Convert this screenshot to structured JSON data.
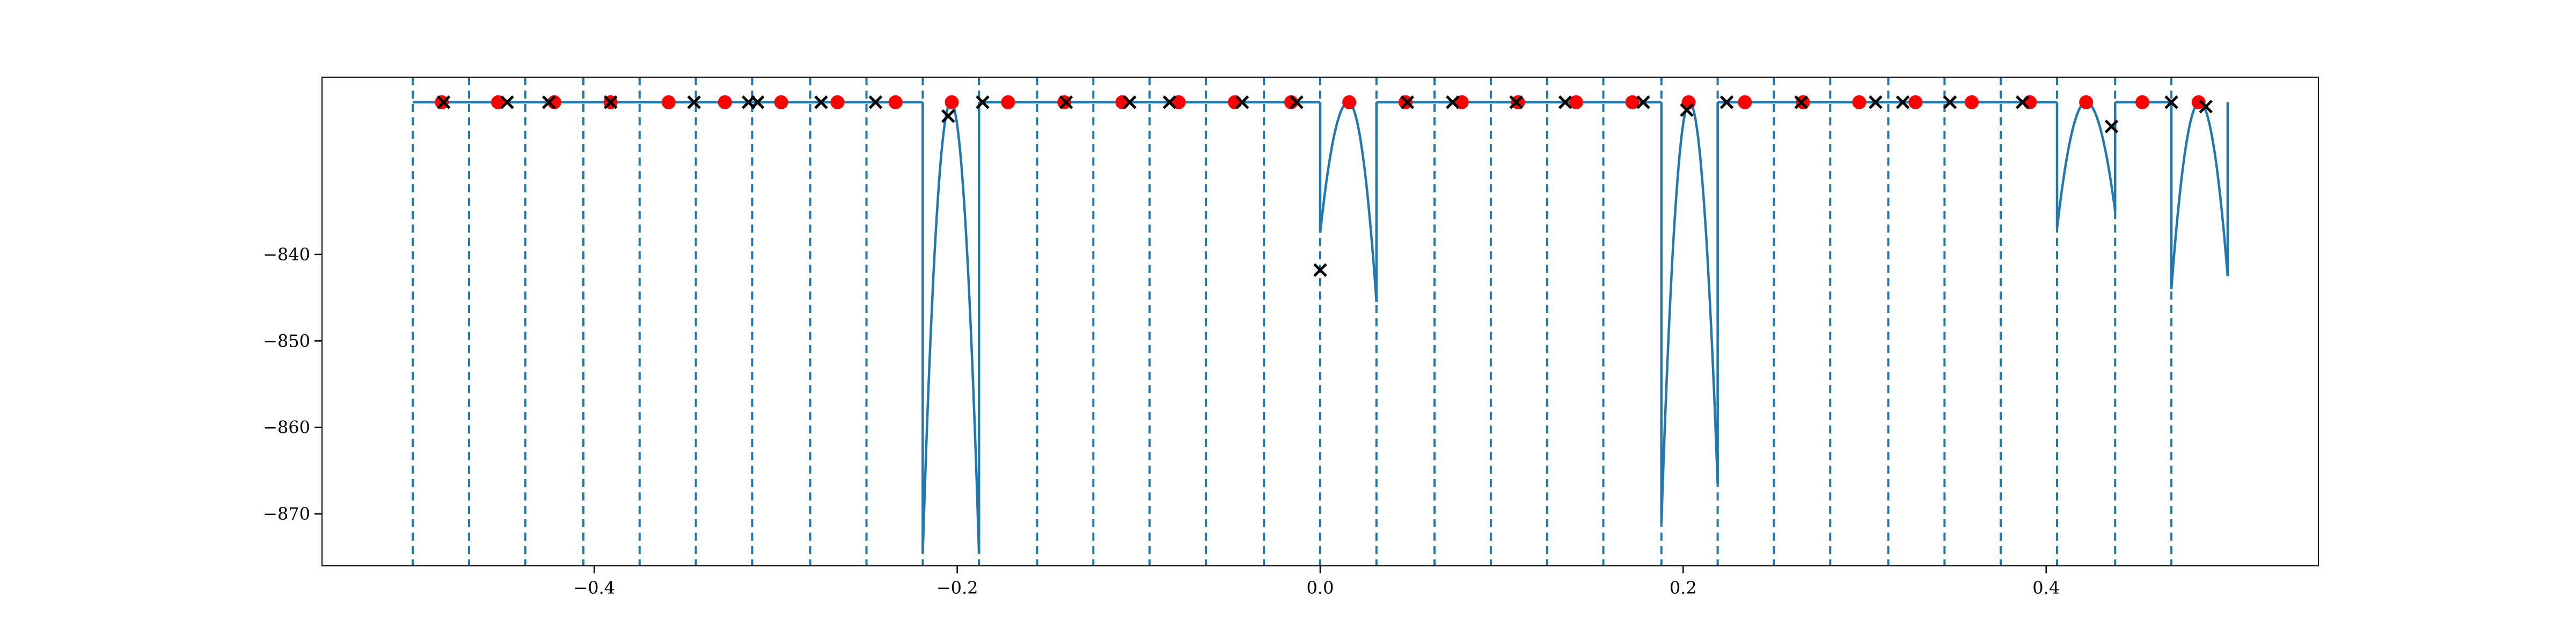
{
  "chart_data": {
    "type": "line",
    "title": "",
    "xlabel": "",
    "ylabel": "",
    "xlim": [
      -0.55,
      0.55
    ],
    "ylim": [
      -876,
      -819.5
    ],
    "grid": false,
    "x_ticks": [
      -0.4,
      -0.2,
      0.0,
      0.2,
      0.4
    ],
    "x_tick_labels": [
      "−0.4",
      "−0.2",
      "0.0",
      "0.2",
      "0.4"
    ],
    "y_ticks": [
      -840,
      -850,
      -860,
      -870
    ],
    "y_tick_labels": [
      "−840",
      "−850",
      "−860",
      "−870"
    ],
    "colors": {
      "line": "#1f77b4",
      "dots": "#ff0000",
      "crosses": "#000000",
      "frame": "#000000"
    },
    "segment_boundaries": [
      -0.5,
      -0.469,
      -0.438,
      -0.406,
      -0.375,
      -0.344,
      -0.313,
      -0.281,
      -0.25,
      -0.219,
      -0.188,
      -0.156,
      -0.125,
      -0.094,
      -0.063,
      -0.031,
      0.0,
      0.031,
      0.063,
      0.094,
      0.125,
      0.156,
      0.188,
      0.219,
      0.25,
      0.281,
      0.313,
      0.344,
      0.375,
      0.406,
      0.438,
      0.469
    ],
    "segments": [
      {
        "x0": -0.5,
        "x1": -0.219,
        "shape": "flat",
        "ypeak": -822.4
      },
      {
        "x0": -0.219,
        "x1": -0.188,
        "shape": "bump",
        "ypeak": -822.4,
        "ystart": -874.5,
        "yend": -874.5
      },
      {
        "x0": -0.188,
        "x1": 0.0,
        "shape": "flat",
        "ypeak": -822.4
      },
      {
        "x0": 0.0,
        "x1": 0.031,
        "shape": "bump",
        "ypeak": -822.4,
        "ystart": -837.5,
        "yend": -845.5
      },
      {
        "x0": 0.031,
        "x1": 0.188,
        "shape": "flat",
        "ypeak": -822.4
      },
      {
        "x0": 0.188,
        "x1": 0.219,
        "shape": "bump",
        "ypeak": -822.4,
        "ystart": -871.0,
        "yend": -866.5
      },
      {
        "x0": 0.219,
        "x1": 0.406,
        "shape": "flat",
        "ypeak": -822.4
      },
      {
        "x0": 0.406,
        "x1": 0.438,
        "shape": "bump",
        "ypeak": -822.4,
        "ystart": -837.0,
        "yend": -835.0
      },
      {
        "x0": 0.438,
        "x1": 0.469,
        "shape": "flat",
        "ypeak": -822.4
      },
      {
        "x0": 0.469,
        "x1": 0.5,
        "shape": "bump",
        "ypeak": -822.4,
        "ystart": -844.0,
        "yend": -842.5
      }
    ],
    "dots": {
      "x": [
        -0.484,
        -0.453,
        -0.422,
        -0.391,
        -0.359,
        -0.328,
        -0.297,
        -0.266,
        -0.234,
        -0.203,
        -0.172,
        -0.141,
        -0.109,
        -0.078,
        -0.047,
        -0.016,
        0.016,
        0.047,
        0.078,
        0.109,
        0.141,
        0.172,
        0.203,
        0.234,
        0.266,
        0.297,
        0.328,
        0.359,
        0.391,
        0.422,
        0.453,
        0.484
      ],
      "y": [
        -822.4,
        -822.4,
        -822.4,
        -822.4,
        -822.4,
        -822.4,
        -822.4,
        -822.4,
        -822.4,
        -822.4,
        -822.4,
        -822.4,
        -822.4,
        -822.4,
        -822.4,
        -822.4,
        -822.4,
        -822.4,
        -822.4,
        -822.4,
        -822.4,
        -822.4,
        -822.4,
        -822.4,
        -822.4,
        -822.4,
        -822.4,
        -822.4,
        -822.4,
        -822.4,
        -822.4,
        -822.4
      ]
    },
    "crosses": {
      "x": [
        -0.483,
        -0.448,
        -0.425,
        -0.391,
        -0.345,
        -0.315,
        -0.31,
        -0.275,
        -0.245,
        -0.205,
        -0.186,
        -0.14,
        -0.105,
        -0.083,
        -0.043,
        -0.013,
        0.0,
        0.048,
        0.073,
        0.108,
        0.135,
        0.178,
        0.202,
        0.224,
        0.265,
        0.306,
        0.321,
        0.347,
        0.387,
        0.436,
        0.469,
        0.488
      ],
      "y": [
        -822.4,
        -822.4,
        -822.4,
        -822.4,
        -822.4,
        -822.4,
        -822.4,
        -822.4,
        -822.4,
        -824.0,
        -822.4,
        -822.4,
        -822.4,
        -822.4,
        -822.4,
        -822.4,
        -841.8,
        -822.4,
        -822.4,
        -822.4,
        -822.4,
        -822.4,
        -823.3,
        -822.4,
        -822.4,
        -822.4,
        -822.4,
        -822.4,
        -822.4,
        -825.2,
        -822.4,
        -822.9
      ]
    }
  }
}
